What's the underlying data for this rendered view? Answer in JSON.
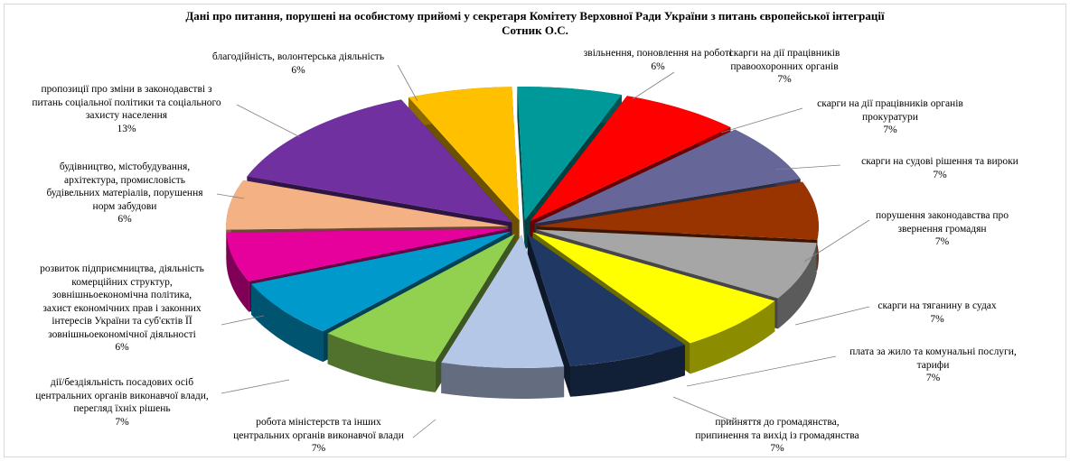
{
  "chart_data": {
    "type": "pie",
    "title": "Дані про питання, порушені на особистому прийомі у секретаря Комітету Верховної Ради України з питань європейської  інтеграції",
    "subtitle": "Сотник О.С.",
    "slices": [
      {
        "label": "звільнення,  поновлення на роботі",
        "value": 6,
        "value_label": "6%",
        "color": "#009999"
      },
      {
        "label": "скарги на дії  працівників\nправоохоронних  органів",
        "value": 7,
        "value_label": "7%",
        "color": "#ff0000"
      },
      {
        "label": "скарги на дії  працівників  органів\nпрокуратури",
        "value": 7,
        "value_label": "7%",
        "color": "#666699"
      },
      {
        "label": "скарги на судові рішення та вироки",
        "value": 7,
        "value_label": "7%",
        "color": "#993300"
      },
      {
        "label": "порушення законодавства про\nзвернення громадян",
        "value": 7,
        "value_label": "7%",
        "color": "#a6a6a6"
      },
      {
        "label": "скарги на тяганину  в судах",
        "value": 7,
        "value_label": "7%",
        "color": "#ffff00"
      },
      {
        "label": "плата за жило  та комунальні послуги,\nтарифи",
        "value": 7,
        "value_label": "7%",
        "color": "#1f3864"
      },
      {
        "label": "прийняття до громадянства,\nприпинення та вихід  із громадянства",
        "value": 7,
        "value_label": "7%",
        "color": "#b4c7e7"
      },
      {
        "label": "робота міністерств  та інших\nцентральних  органів виконавчої влади",
        "value": 7,
        "value_label": "7%",
        "color": "#92d050"
      },
      {
        "label": "дії/бездіяльність  посадових  осіб\nцентральних  органів виконавчої влади,\nперегляд  їхніх  рішень",
        "value": 7,
        "value_label": "7%",
        "color": "#0099cc"
      },
      {
        "label": "розвиток підприємництва,  діяльність\nкомерційних  структур,\nзовнішньоекономічна політика,\nзахист  економічних  прав і законних\nінтересів  України  та суб'єктів  ЇЇ\nзовнішньоекономічної діяльності",
        "value": 6,
        "value_label": "6%",
        "color": "#e6009c"
      },
      {
        "label": "будівництво,  містобудування,\nархітектура,  промисловість\nбудівельних  матеріалів, порушення\nнорм забудови",
        "value": 6,
        "value_label": "6%",
        "color": "#f4b183"
      },
      {
        "label": "пропозиції про зміни в законодавстві  з\nпитань  соціальної політики  та соціального\nзахисту  населення",
        "value": 13,
        "value_label": "13%",
        "color": "#7030a0"
      },
      {
        "label": "благодійність,  волонтерська діяльність",
        "value": 6,
        "value_label": "6%",
        "color": "#ffc000"
      }
    ],
    "legend": "none",
    "style": "3d-exploded-pie"
  }
}
